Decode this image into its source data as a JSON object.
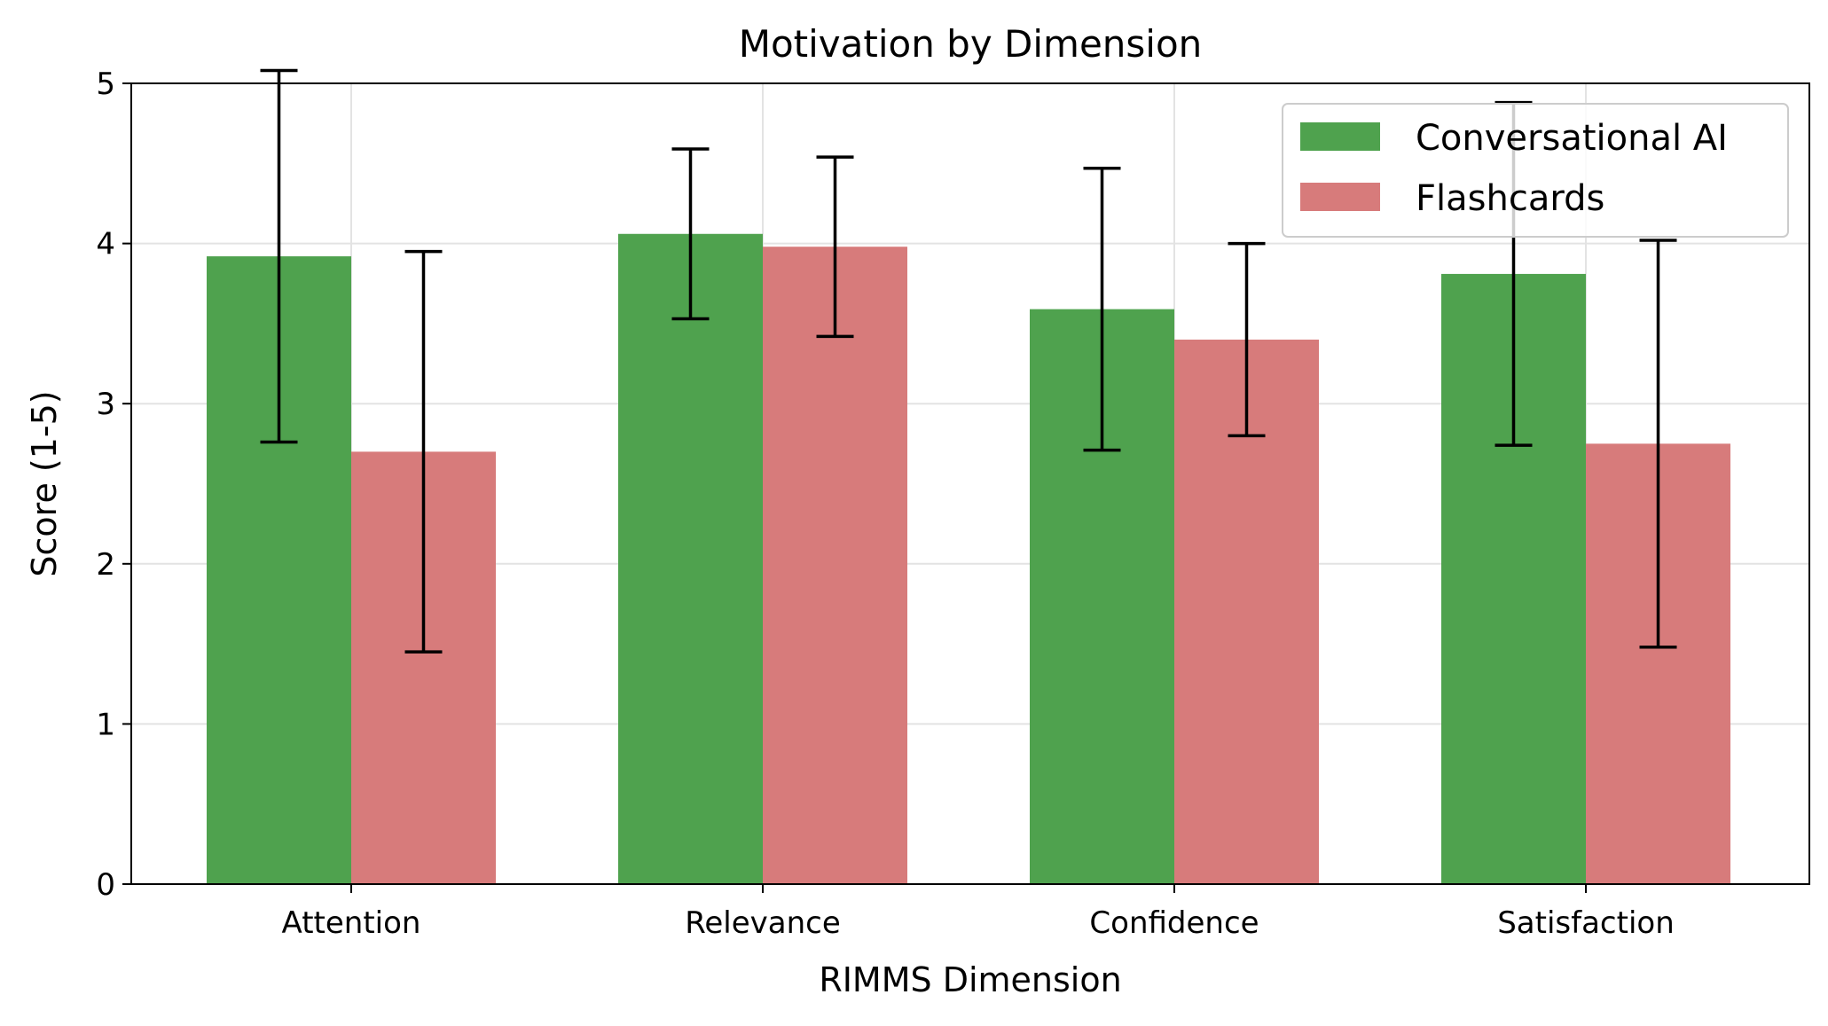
{
  "chart_data": {
    "type": "bar",
    "title": "Motivation by Dimension",
    "xlabel": "RIMMS Dimension",
    "ylabel": "Score (1-5)",
    "categories": [
      "Attention",
      "Relevance",
      "Confidence",
      "Satisfaction"
    ],
    "ylim": [
      0,
      5
    ],
    "yticks": [
      0,
      1,
      2,
      3,
      4,
      5
    ],
    "grid": true,
    "legend_position": "top-right",
    "series": [
      {
        "name": "Conversational AI",
        "color": "#4fa24e",
        "values": [
          3.92,
          4.06,
          3.59,
          3.81
        ],
        "error": [
          1.16,
          0.53,
          0.88,
          1.07
        ]
      },
      {
        "name": "Flashcards",
        "color": "#d77b7b",
        "values": [
          2.7,
          3.98,
          3.4,
          2.75
        ],
        "error": [
          1.25,
          0.56,
          0.6,
          1.27
        ]
      }
    ]
  }
}
